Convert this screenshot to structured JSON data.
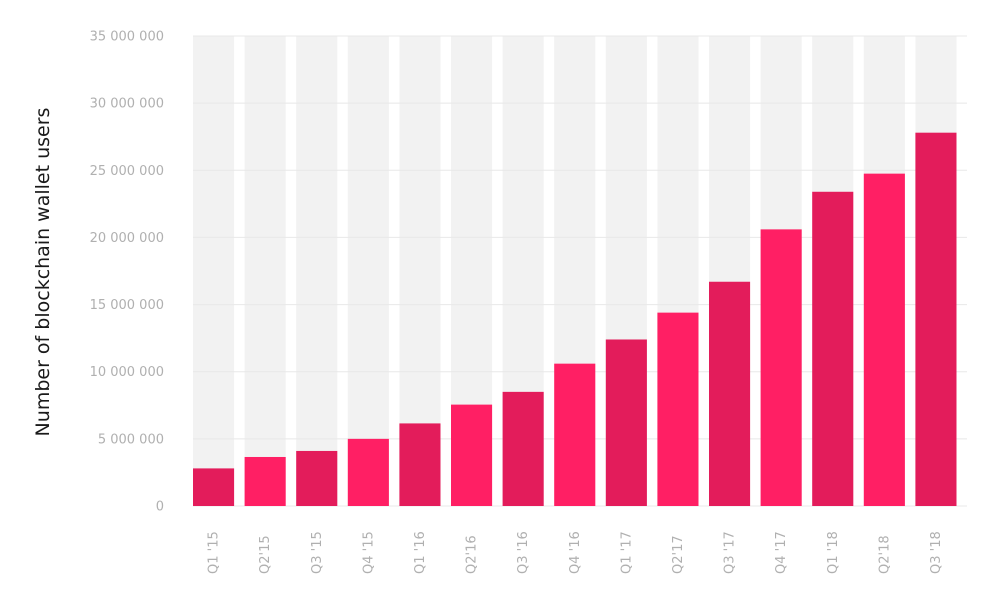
{
  "chart_data": {
    "type": "bar",
    "title": "",
    "xlabel": "",
    "ylabel": "Number of blockchain wallet users",
    "categories": [
      "Q1 '15",
      "Q2'15",
      "Q3 '15",
      "Q4 '15",
      "Q1 '16",
      "Q2'16",
      "Q3 '16",
      "Q4 '16",
      "Q1 '17",
      "Q2'17",
      "Q3 '17",
      "Q4 '17",
      "Q1 '18",
      "Q2'18",
      "Q3 '18"
    ],
    "values": [
      2800000,
      3650000,
      4100000,
      5000000,
      6150000,
      7550000,
      8500000,
      10600000,
      12400000,
      14400000,
      16700000,
      20600000,
      23400000,
      24750000,
      27800000
    ],
    "ylim": [
      0,
      35000000
    ],
    "yticks": [
      0,
      5000000,
      10000000,
      15000000,
      20000000,
      25000000,
      30000000,
      35000000
    ],
    "ytick_labels": [
      "0",
      "5 000 000",
      "10 000 000",
      "15 000 000",
      "20 000 000",
      "25 000 000",
      "30 000 000",
      "35 000 000"
    ],
    "grid": true,
    "colors": {
      "bar_dark": "#e31c5b",
      "bar_light": "#ff1f64",
      "column_background": "#f2f2f2",
      "gridline": "#e8e8e8",
      "tick_text": "#b0b0b0",
      "label_text": "#1a1a1a"
    }
  }
}
